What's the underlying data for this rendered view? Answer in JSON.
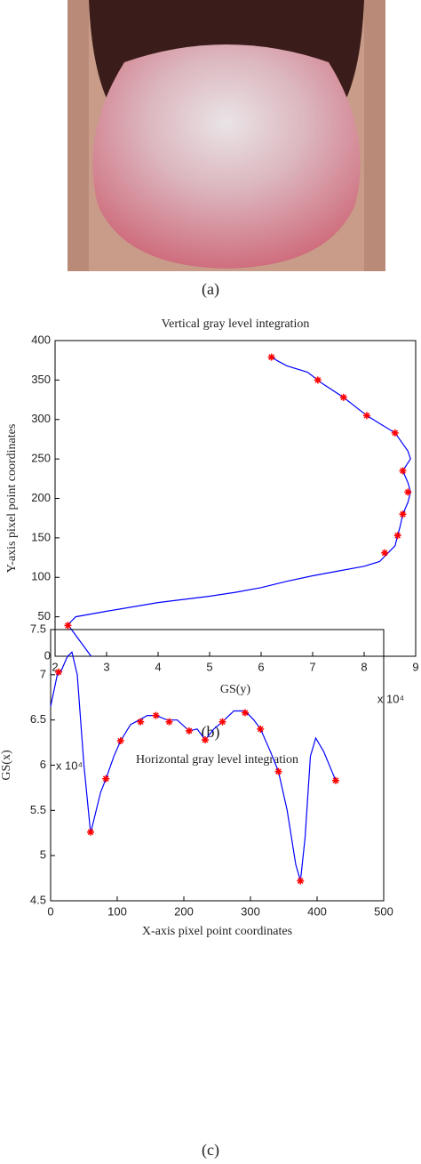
{
  "captions": [
    "(a)",
    "(b)",
    "(c)"
  ],
  "chart_data": [
    {
      "type": "line",
      "title": "Vertical gray level integration",
      "x_label": "GS(y)",
      "y_label": "Y-axis pixel point coordinates",
      "x_multiplier": "x 10⁴",
      "xlim": [
        2,
        9
      ],
      "xticks": [
        2,
        3,
        4,
        5,
        6,
        7,
        8,
        9
      ],
      "ylim": [
        0,
        400
      ],
      "yticks": [
        0,
        50,
        100,
        150,
        200,
        250,
        300,
        350,
        400
      ],
      "series": [
        {
          "color": "#0000ff",
          "marker": "none",
          "x": [
            2.7,
            2.25,
            2.4,
            3,
            4,
            5,
            5.5,
            6,
            6.5,
            7,
            7.5,
            8,
            8.3,
            8.45,
            8.6,
            8.65,
            8.7,
            8.75,
            8.85,
            8.9,
            8.85,
            8.75,
            8.9,
            8.85,
            8.6,
            8.3,
            8.05,
            7.6,
            7.2,
            7.1,
            6.9,
            6.5,
            6.3,
            6.2
          ],
          "values": [
            0,
            40,
            50,
            57,
            68,
            76,
            81,
            87,
            95,
            102,
            108,
            114,
            120,
            130,
            140,
            153,
            165,
            180,
            195,
            208,
            220,
            235,
            250,
            260,
            283,
            295,
            305,
            328,
            345,
            350,
            360,
            368,
            375,
            380
          ]
        },
        {
          "color": "#ff0000",
          "marker": "star",
          "x": [
            2.25,
            8.4,
            8.65,
            8.75,
            8.85,
            8.75,
            8.6,
            8.05,
            7.6,
            7.1,
            6.2
          ],
          "values": [
            39,
            131,
            153,
            180,
            208,
            235,
            283,
            305,
            328,
            350,
            379
          ]
        }
      ]
    },
    {
      "type": "line",
      "title": "Horizontal gray level integration",
      "x_label": "X-axis pixel point coordinates",
      "y_label": "GS(x)",
      "y_multiplier": "x 10⁴",
      "xlim": [
        0,
        500
      ],
      "xticks": [
        0,
        100,
        200,
        300,
        400,
        500
      ],
      "ylim": [
        4.5,
        7.5
      ],
      "yticks": [
        4.5,
        5,
        5.5,
        6,
        6.5,
        7,
        7.5
      ],
      "series": [
        {
          "color": "#0000ff",
          "marker": "none",
          "x": [
            0,
            10,
            15,
            25,
            32,
            40,
            50,
            60,
            65,
            75,
            83,
            95,
            105,
            120,
            133,
            145,
            158,
            175,
            190,
            208,
            220,
            232,
            245,
            258,
            275,
            292,
            305,
            315,
            330,
            342,
            355,
            368,
            375,
            382,
            390,
            398,
            410,
            428
          ],
          "values": [
            6.65,
            7.0,
            7.03,
            7.2,
            7.25,
            7.0,
            6.0,
            5.25,
            5.4,
            5.7,
            5.85,
            6.1,
            6.27,
            6.45,
            6.5,
            6.55,
            6.55,
            6.5,
            6.5,
            6.38,
            6.4,
            6.28,
            6.4,
            6.48,
            6.6,
            6.6,
            6.5,
            6.4,
            6.15,
            5.93,
            5.5,
            4.9,
            4.72,
            5.2,
            6.1,
            6.3,
            6.15,
            5.83
          ]
        },
        {
          "color": "#ff0000",
          "marker": "star",
          "x": [
            12,
            60,
            83,
            105,
            135,
            158,
            178,
            208,
            232,
            258,
            292,
            315,
            342,
            375,
            428
          ],
          "values": [
            7.03,
            5.26,
            5.85,
            6.27,
            6.48,
            6.55,
            6.48,
            6.38,
            6.28,
            6.48,
            6.58,
            6.4,
            5.93,
            4.72,
            5.83
          ]
        }
      ]
    }
  ]
}
